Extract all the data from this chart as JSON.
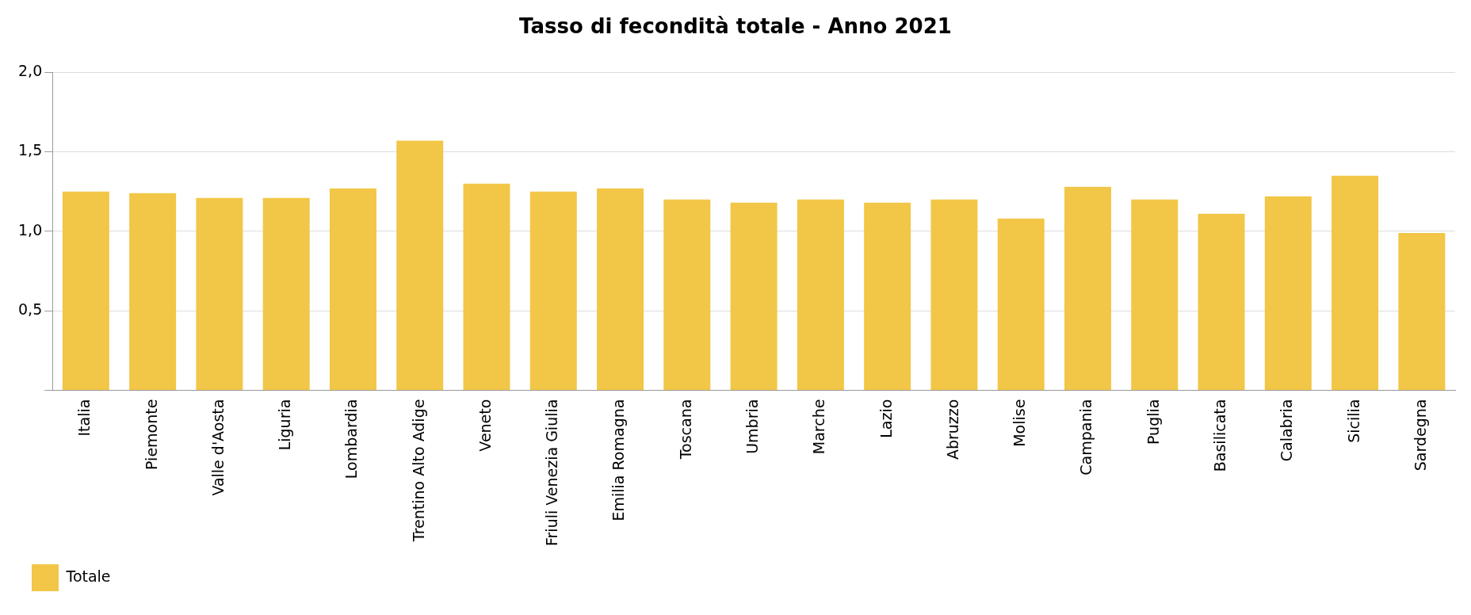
{
  "chart_data": {
    "type": "bar",
    "title": "Tasso di fecondità totale - Anno 2021",
    "categories": [
      "Italia",
      "Piemonte",
      "Valle d'Aosta",
      "Liguria",
      "Lombardia",
      "Trentino Alto Adige",
      "Veneto",
      "Friuli Venezia Giulia",
      "Emilia Romagna",
      "Toscana",
      "Umbria",
      "Marche",
      "Lazio",
      "Abruzzo",
      "Molise",
      "Campania",
      "Puglia",
      "Basilicata",
      "Calabria",
      "Sicilia",
      "Sardegna"
    ],
    "series": [
      {
        "name": "Totale",
        "color": "#f2c646",
        "values": [
          1.25,
          1.24,
          1.21,
          1.21,
          1.27,
          1.57,
          1.3,
          1.25,
          1.27,
          1.2,
          1.18,
          1.2,
          1.18,
          1.2,
          1.08,
          1.28,
          1.2,
          1.11,
          1.22,
          1.35,
          0.99
        ]
      }
    ],
    "ylim": [
      0,
      2
    ],
    "yticks": [
      {
        "value": 0,
        "label": null
      },
      {
        "value": 0.5,
        "label": "0,5"
      },
      {
        "value": 1,
        "label": "1,0"
      },
      {
        "value": 1.5,
        "label": "1,5"
      },
      {
        "value": 2,
        "label": "2,0"
      }
    ],
    "grid": "y",
    "legend": "bottom left"
  }
}
